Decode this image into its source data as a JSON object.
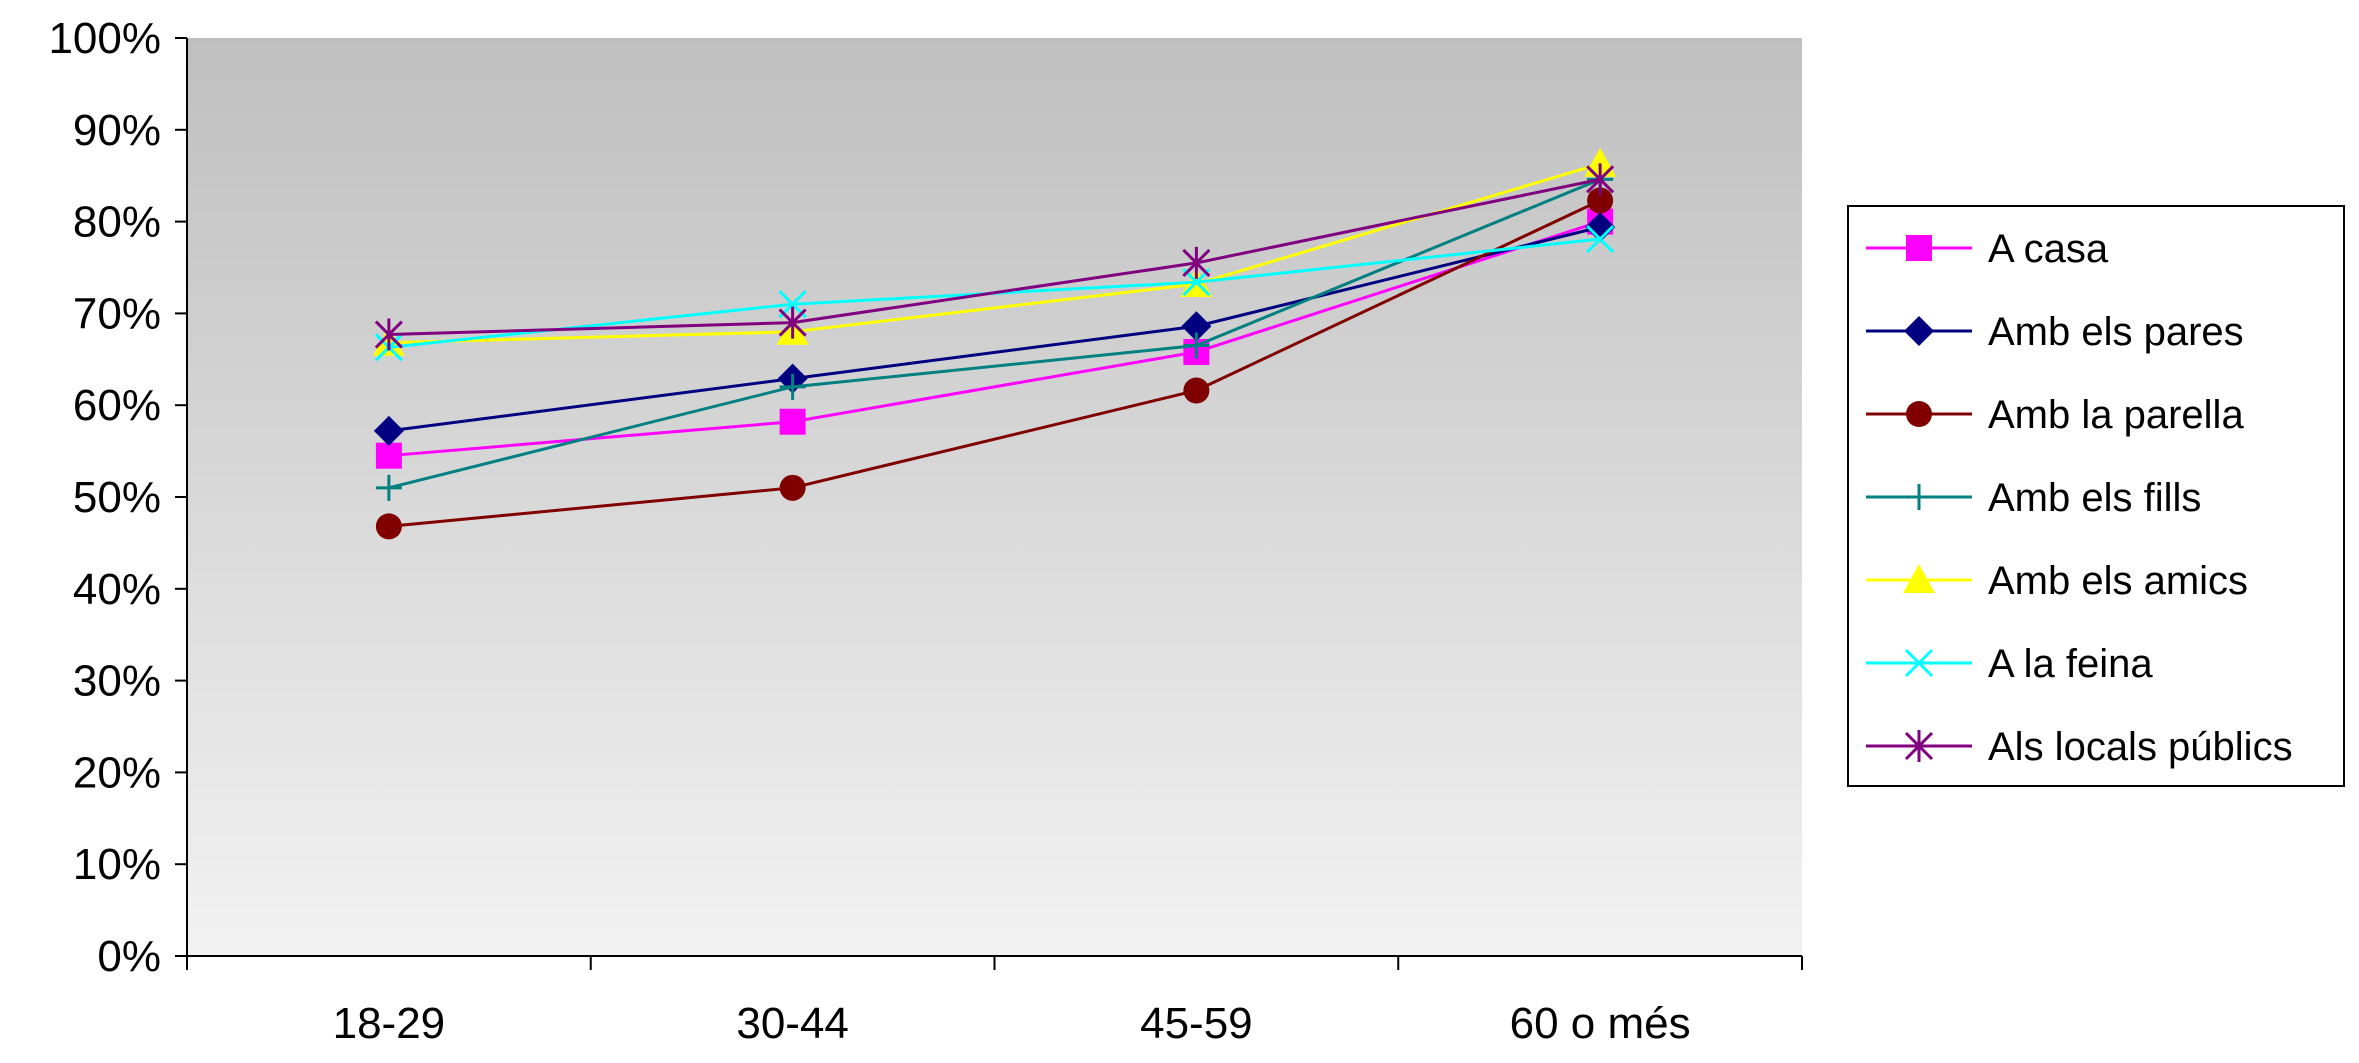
{
  "chart_data": {
    "type": "line",
    "title": "",
    "xlabel": "",
    "ylabel": "",
    "categories": [
      "18-29",
      "30-44",
      "45-59",
      "60 o més"
    ],
    "ylim": [
      0,
      100
    ],
    "yticks": [
      "0%",
      "10%",
      "20%",
      "30%",
      "40%",
      "50%",
      "60%",
      "70%",
      "80%",
      "90%",
      "100%"
    ],
    "grid": false,
    "legend_position": "right",
    "series": [
      {
        "name": "A casa",
        "color": "#ff00ff",
        "marker": "square",
        "values": [
          54.5,
          58.2,
          65.8,
          80.0
        ]
      },
      {
        "name": "Amb els pares",
        "color": "#000080",
        "marker": "diamond",
        "values": [
          57.2,
          62.9,
          68.6,
          79.4
        ]
      },
      {
        "name": "Amb la parella",
        "color": "#800000",
        "marker": "circle",
        "values": [
          46.8,
          51.0,
          61.6,
          82.3
        ]
      },
      {
        "name": "Amb els fills",
        "color": "#008080",
        "marker": "plus",
        "values": [
          51.0,
          62.0,
          66.5,
          84.6
        ]
      },
      {
        "name": "Amb els amics",
        "color": "#ffff00",
        "marker": "triangle",
        "values": [
          66.8,
          68.0,
          73.2,
          86.3
        ]
      },
      {
        "name": "A la feina",
        "color": "#00ffff",
        "marker": "x",
        "values": [
          66.3,
          71.0,
          73.4,
          78.1
        ]
      },
      {
        "name": "Als locals públics",
        "color": "#800080",
        "marker": "star",
        "values": [
          67.7,
          69.0,
          75.5,
          84.6
        ]
      }
    ]
  }
}
